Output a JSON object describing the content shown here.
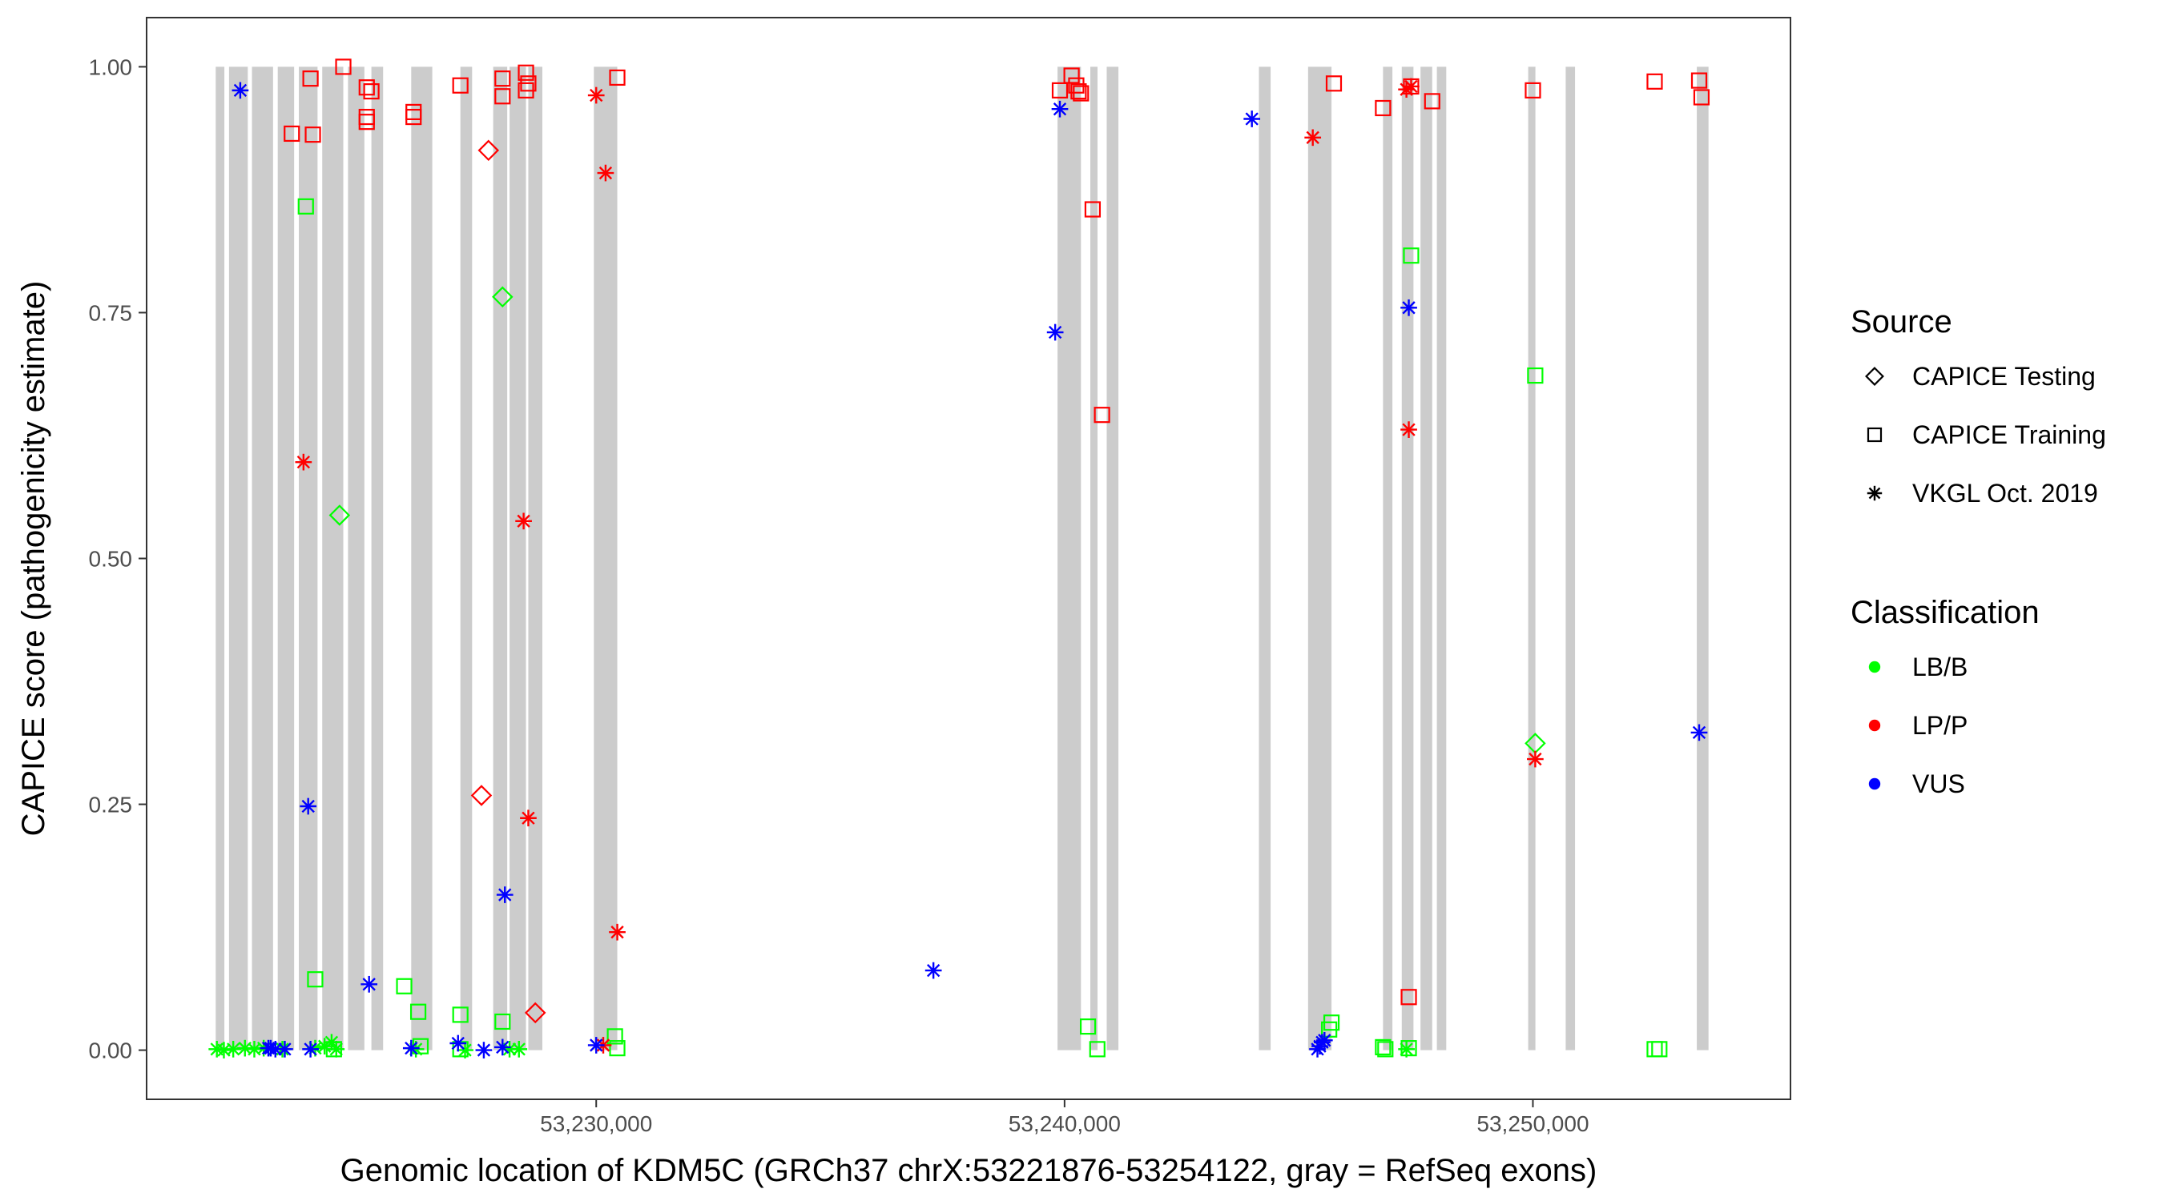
{
  "chart_data": {
    "type": "scatter",
    "xlabel": "Genomic location of KDM5C (GRCh37 chrX:53221876-53254122, gray = RefSeq exons)",
    "ylabel": "CAPICE score (pathogenicity estimate)",
    "xlim": [
      53220400,
      53255500
    ],
    "ylim": [
      -0.05,
      1.05
    ],
    "x_ticks": [
      {
        "value": 53230000,
        "label": "53,230,000"
      },
      {
        "value": 53240000,
        "label": "53,240,000"
      },
      {
        "value": 53250000,
        "label": "53,250,000"
      }
    ],
    "y_ticks": [
      {
        "value": 0.0,
        "label": "0.00"
      },
      {
        "value": 0.25,
        "label": "0.25"
      },
      {
        "value": 0.5,
        "label": "0.50"
      },
      {
        "value": 0.75,
        "label": "0.75"
      },
      {
        "value": 1.0,
        "label": "1.00"
      }
    ],
    "grid": false,
    "exons": [
      [
        53221876,
        53222060
      ],
      [
        53222160,
        53222560
      ],
      [
        53222650,
        53223100
      ],
      [
        53223200,
        53223550
      ],
      [
        53223650,
        53224050
      ],
      [
        53224150,
        53224600
      ],
      [
        53224700,
        53225050
      ],
      [
        53225200,
        53225450
      ],
      [
        53226050,
        53226500
      ],
      [
        53227100,
        53227350
      ],
      [
        53227800,
        53228100
      ],
      [
        53228150,
        53228500
      ],
      [
        53228550,
        53228850
      ],
      [
        53229950,
        53230450
      ],
      [
        53239850,
        53240350
      ],
      [
        53240550,
        53240700
      ],
      [
        53240900,
        53241150
      ],
      [
        53244150,
        53244400
      ],
      [
        53245200,
        53245700
      ],
      [
        53246800,
        53247000
      ],
      [
        53247200,
        53247450
      ],
      [
        53247600,
        53247850
      ],
      [
        53247950,
        53248150
      ],
      [
        53249900,
        53250050
      ],
      [
        53250700,
        53250900
      ],
      [
        53253500,
        53253750
      ]
    ],
    "legend": {
      "placement": "right",
      "source": {
        "title": "Source",
        "items": [
          {
            "label": "CAPICE Testing",
            "shape": "diamond"
          },
          {
            "label": "CAPICE Training",
            "shape": "square"
          },
          {
            "label": "VKGL Oct. 2019",
            "shape": "asterisk"
          }
        ]
      },
      "classification": {
        "title": "Classification",
        "items": [
          {
            "label": "LB/B",
            "color": "#00ff00"
          },
          {
            "label": "LP/P",
            "color": "#ff0000"
          },
          {
            "label": "VUS",
            "color": "#0000ff"
          }
        ]
      }
    },
    "series": [
      {
        "source": "CAPICE Testing",
        "classification": "LB/B",
        "x": [
          53224520,
          53228000,
          53250050
        ],
        "y": [
          0.544,
          0.766,
          0.312
        ]
      },
      {
        "source": "CAPICE Testing",
        "classification": "LP/P",
        "x": [
          53227700,
          53227550,
          53228700
        ],
        "y": [
          0.915,
          0.259,
          0.038
        ]
      },
      {
        "source": "CAPICE Training",
        "classification": "LB/B",
        "x": [
          53223800,
          53224000,
          53224400,
          53225900,
          53226200,
          53226250,
          53227100,
          53227100,
          53228000,
          53230400,
          53230450,
          53240500,
          53240700,
          53245700,
          53245650,
          53246800,
          53246850,
          53247400,
          53247350,
          53250050,
          53252600,
          53252700
        ],
        "y": [
          0.858,
          0.072,
          0.001,
          0.065,
          0.039,
          0.004,
          0.036,
          0.001,
          0.029,
          0.014,
          0.002,
          0.024,
          0.001,
          0.028,
          0.021,
          0.003,
          0.001,
          0.808,
          0.002,
          0.686,
          0.001,
          0.001
        ]
      },
      {
        "source": "CAPICE Training",
        "classification": "LP/P",
        "x": [
          53224600,
          53223900,
          53223500,
          53223950,
          53225100,
          53225200,
          53225100,
          53225100,
          53226100,
          53226100,
          53227100,
          53228000,
          53228000,
          53228500,
          53228550,
          53228500,
          53230450,
          53239900,
          53240150,
          53240250,
          53240300,
          53240350,
          53240600,
          53240800,
          53245750,
          53246800,
          53247400,
          53247350,
          53247850,
          53250000,
          53252600,
          53253550,
          53253600
        ],
        "y": [
          1.0,
          0.988,
          0.932,
          0.931,
          0.979,
          0.975,
          0.949,
          0.944,
          0.954,
          0.949,
          0.981,
          0.988,
          0.97,
          0.994,
          0.983,
          0.976,
          0.989,
          0.976,
          0.991,
          0.981,
          0.975,
          0.973,
          0.855,
          0.646,
          0.983,
          0.958,
          0.98,
          0.054,
          0.965,
          0.976,
          0.985,
          0.986,
          0.969
        ],
        "y_note_unused": []
      },
      {
        "source": "VKGL Oct. 2019",
        "classification": "LB/B",
        "x": [
          53221900,
          53222050,
          53222250,
          53222500,
          53222700,
          53222900,
          53223300,
          53224000,
          53224200,
          53224350,
          53224450,
          53226150,
          53227200,
          53228150,
          53228350,
          53247300
        ],
        "y": [
          0.001,
          0.0,
          0.001,
          0.002,
          0.001,
          0.002,
          0.001,
          0.002,
          0.004,
          0.008,
          0.001,
          0.001,
          0.0,
          0.001,
          0.001,
          0.001
        ]
      },
      {
        "source": "VKGL Oct. 2019",
        "classification": "LP/P",
        "x": [
          53223750,
          53228450,
          53228550,
          53230000,
          53230200,
          53230450,
          53230150,
          53245300,
          53247300,
          53247400,
          53247350,
          53250050
        ],
        "y": [
          0.598,
          0.538,
          0.236,
          0.971,
          0.892,
          0.12,
          0.005,
          0.928,
          0.977,
          0.98,
          0.631,
          0.296
        ]
      },
      {
        "source": "VKGL Oct. 2019",
        "classification": "VUS",
        "x": [
          53222400,
          53223000,
          53223150,
          53223350,
          53223850,
          53223900,
          53225150,
          53226050,
          53227050,
          53227600,
          53228050,
          53228000,
          53230000,
          53237200,
          53239800,
          53239900,
          53244000,
          53245450,
          53245500,
          53245550,
          53245400,
          53247350,
          53253550,
          53223050
        ],
        "y": [
          0.976,
          0.002,
          0.001,
          0.001,
          0.248,
          0.001,
          0.067,
          0.002,
          0.007,
          0.0,
          0.158,
          0.003,
          0.005,
          0.081,
          0.73,
          0.957,
          0.947,
          0.004,
          0.008,
          0.01,
          0.001,
          0.755,
          0.323,
          0.002
        ]
      }
    ]
  }
}
